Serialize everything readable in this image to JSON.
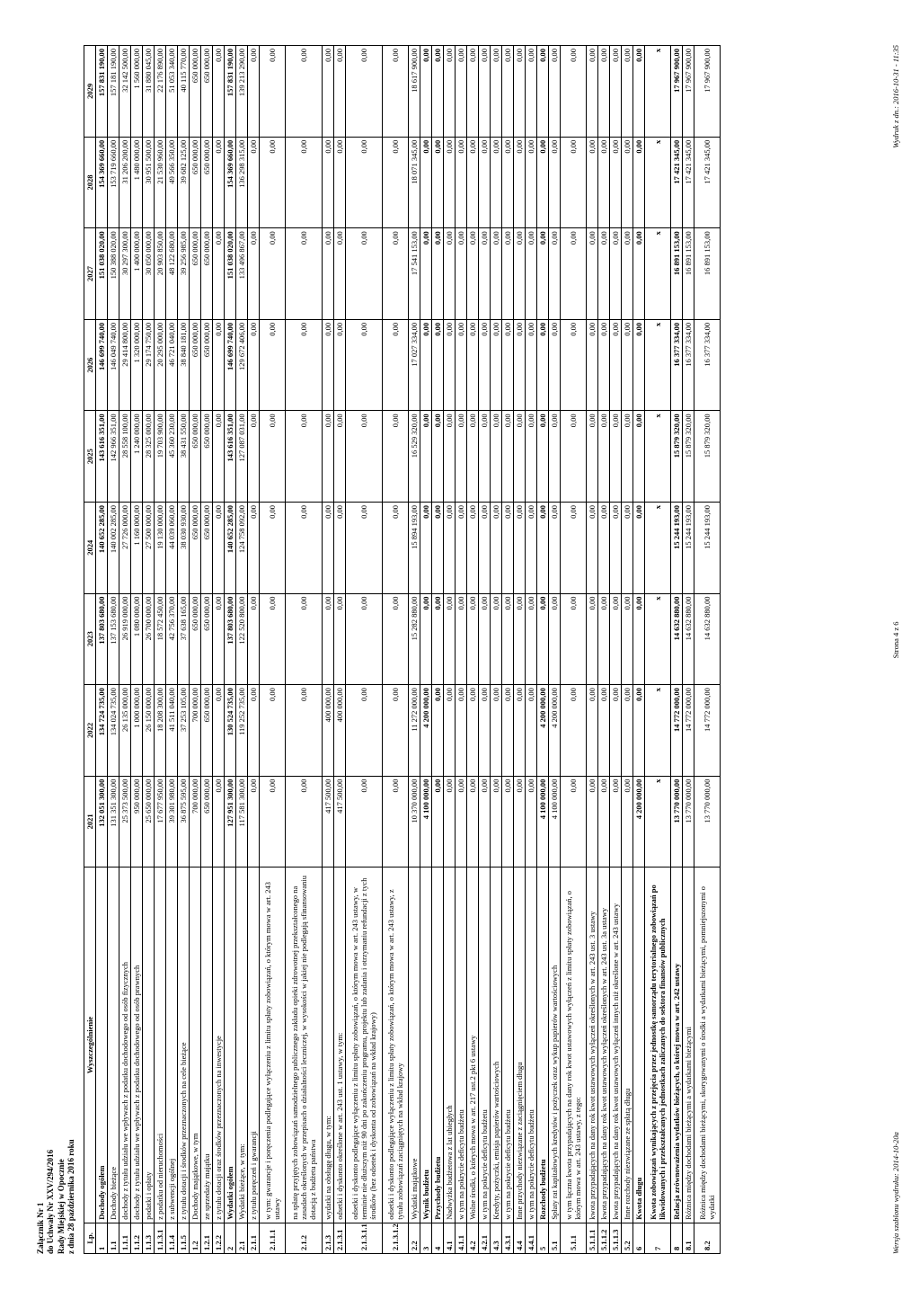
{
  "header": {
    "l1": "Załącznik Nr 1",
    "l2": "do Uchwały Nr XXV/294/2016",
    "l3": "Rady Miejskiej w Opocznie",
    "l4": "z dnia 28 października 2016 roku"
  },
  "columns": [
    "Lp.",
    "Wyszczególnienie",
    "2021",
    "2022",
    "2023",
    "2024",
    "2025",
    "2026",
    "2027",
    "2028",
    "2029"
  ],
  "rows": [
    {
      "lp": "1",
      "desc": "Dochody ogółem",
      "v": [
        "132 051 300,00",
        "134 724 735,00",
        "137 803 680,00",
        "140 652 285,00",
        "143 616 351,00",
        "146 699 740,00",
        "151 038 020,00",
        "154 369 660,00",
        "157 831 190,00"
      ],
      "bold": true
    },
    {
      "lp": "1.1",
      "desc": "Dochody bieżące",
      "v": [
        "131 351 300,00",
        "134 024 735,00",
        "137 153 680,00",
        "140 002 285,00",
        "142 966 351,00",
        "146 049 740,00",
        "150 388 020,00",
        "153 719 660,00",
        "157 181 190,00"
      ]
    },
    {
      "lp": "1.1.1",
      "desc": "dochody z tytułu udziału we wpływach z podatku dochodowego od osób fizycznych",
      "v": [
        "25 373 500,00",
        "26 135 000,00",
        "26 919 000,00",
        "27 726 000,00",
        "28 558 100,00",
        "29 414 800,00",
        "30 297 300,00",
        "31 206 200,00",
        "32 142 500,00"
      ]
    },
    {
      "lp": "1.1.2",
      "desc": "dochody z tytułu udziału we wpływach z podatku dochodowego od osób prawnych",
      "v": [
        "950 000,00",
        "1 000 000,00",
        "1 080 000,00",
        "1 160 000,00",
        "1 240 000,00",
        "1 320 000,00",
        "1 400 000,00",
        "1 480 000,00",
        "1 560 000,00"
      ]
    },
    {
      "lp": "1.1.3",
      "desc": "podatki i opłaty",
      "v": [
        "25 650 000,00",
        "26 150 000,00",
        "26 700 000,00",
        "27 500 000,00",
        "28 325 000,00",
        "29 174 750,00",
        "30 050 000,00",
        "30 951 500,00",
        "31 880 045,00"
      ]
    },
    {
      "lp": "1.1.3.1",
      "desc": "z podatku od nieruchomości",
      "v": [
        "17 677 950,00",
        "18 208 300,00",
        "18 572 450,00",
        "19 130 000,00",
        "19 703 900,00",
        "20 295 000,00",
        "20 903 850,00",
        "21 530 960,00",
        "22 176 890,00"
      ]
    },
    {
      "lp": "1.1.4",
      "desc": "z subwencji ogólnej",
      "v": [
        "39 301 980,00",
        "41 511 040,00",
        "42 756 370,00",
        "44 039 060,00",
        "45 360 230,00",
        "46 721 040,00",
        "48 122 680,00",
        "49 566 350,00",
        "51 053 340,00"
      ]
    },
    {
      "lp": "1.1.5",
      "desc": "z tytułu dotacji i środków przeznaczonych na cele bieżące",
      "v": [
        "36 875 595,00",
        "37 253 105,00",
        "37 638 165,00",
        "38 030 930,00",
        "38 431 550,00",
        "38 840 181,00",
        "39 256 985,00",
        "39 682 125,00",
        "40 115 770,00"
      ]
    },
    {
      "lp": "1.2",
      "desc": "Dochody majątkowe, w tym",
      "v": [
        "700 000,00",
        "700 000,00",
        "650 000,00",
        "650 000,00",
        "650 000,00",
        "650 000,00",
        "650 000,00",
        "650 000,00",
        "650 000,00"
      ]
    },
    {
      "lp": "1.2.1",
      "desc": "ze sprzedaży majątku",
      "v": [
        "650 000,00",
        "650 000,00",
        "650 000,00",
        "650 000,00",
        "650 000,00",
        "650 000,00",
        "650 000,00",
        "650 000,00",
        "650 000,00"
      ]
    },
    {
      "lp": "1.2.2",
      "desc": "z tytułu dotacji oraz środków przeznaczonych na inwestycje",
      "v": [
        "0,00",
        "0,00",
        "0,00",
        "0,00",
        "0,00",
        "0,00",
        "0,00",
        "0,00",
        "0,00"
      ]
    },
    {
      "lp": "2",
      "desc": "Wydatki ogółem",
      "v": [
        "127 951 300,00",
        "130 524 735,00",
        "137 803 680,00",
        "140 652 285,00",
        "143 616 351,00",
        "146 699 740,00",
        "151 038 020,00",
        "154 369 660,00",
        "157 831 190,00"
      ],
      "bold": true
    },
    {
      "lp": "2.1",
      "desc": "Wydatki bieżące, w tym:",
      "v": [
        "117 581 300,00",
        "119 252 735,00",
        "122 520 800,00",
        "124 758 092,00",
        "127 087 031,00",
        "129 672 406,00",
        "133 496 867,00",
        "136 298 315,00",
        "139 213 290,00"
      ]
    },
    {
      "lp": "2.1.1",
      "desc": "z tytułu poręczeń i gwarancji",
      "v": [
        "0,00",
        "0,00",
        "0,00",
        "0,00",
        "0,00",
        "0,00",
        "0,00",
        "0,00",
        "0,00"
      ]
    },
    {
      "lp": "2.1.1.1",
      "desc": "w tym: gwarancje i poręczenia podlegające wyłączeniu z limitu spłaty zobowiązań, o którym mowa w art. 243 ustawy",
      "v": [
        "0,00",
        "0,00",
        "0,00",
        "0,00",
        "0,00",
        "0,00",
        "0,00",
        "0,00",
        "0,00"
      ],
      "cls": "med"
    },
    {
      "lp": "2.1.2",
      "desc": "na spłatę przyjętych zobowiązań samodzielnego publicznego zakładu opieki zdrowotnej przekształconego na zasadach określonych w przepisach  o działalności leczniczej, w wysokości w jakiej nie podlegają sfinansowaniu dotacją z budżetu państwa",
      "v": [
        "0,00",
        "0,00",
        "0,00",
        "0,00",
        "0,00",
        "0,00",
        "0,00",
        "0,00",
        "0,00"
      ],
      "cls": "tall"
    },
    {
      "lp": "2.1.3",
      "desc": "wydatki na obsługę długu, w tym:",
      "v": [
        "417 500,00",
        "400 000,00",
        "0,00",
        "0,00",
        "0,00",
        "0,00",
        "0,00",
        "0,00",
        "0,00"
      ]
    },
    {
      "lp": "2.1.3.1",
      "desc": "odsetki i dyskonto określone w art. 243 ust. 1 ustawy, w tym:",
      "v": [
        "417 500,00",
        "400 000,00",
        "0,00",
        "0,00",
        "0,00",
        "0,00",
        "0,00",
        "0,00",
        "0,00"
      ]
    },
    {
      "lp": "2.1.3.1.1",
      "desc": "odsetki i dyskonto podlegające wyłączeniu z limitu spłaty zobowiązań, o którym mowa w art. 243 ustawy, w terminie nie dłuższym niż 90 dni po zakończeniu programu, projektu lub zadania i otrzymaniu refundacji z tych środków (bez odsetek i dyskonta od zobowiązań na wkład krajowy)",
      "v": [
        "0,00",
        "0,00",
        "0,00",
        "0,00",
        "0,00",
        "0,00",
        "0,00",
        "0,00",
        "0,00"
      ],
      "cls": "tall"
    },
    {
      "lp": "2.1.3.1.2",
      "desc": "odsetki i dyskonto podlegające wyłączeniu z limitu spłaty zobowiązań, o którym mowa w art. 243 ustawy, z tytułu zobowiązań  zaciągniętych na wkład krajowy",
      "v": [
        "0,00",
        "0,00",
        "0,00",
        "0,00",
        "0,00",
        "0,00",
        "0,00",
        "0,00",
        "0,00"
      ],
      "cls": "med"
    },
    {
      "lp": "2.2",
      "desc": "Wydatki majątkowe",
      "v": [
        "10 370 000,00",
        "11 272 000,00",
        "15 282 880,00",
        "15 894 193,00",
        "16 529 320,00",
        "17 027 334,00",
        "17 541 153,00",
        "18 071 345,00",
        "18 617 900,00"
      ]
    },
    {
      "lp": "3",
      "desc": "Wynik budżetu",
      "v": [
        "4 100 000,00",
        "4 200 000,00",
        "0,00",
        "0,00",
        "0,00",
        "0,00",
        "0,00",
        "0,00",
        "0,00"
      ],
      "bold": true
    },
    {
      "lp": "4",
      "desc": "Przychody budżetu",
      "v": [
        "0,00",
        "0,00",
        "0,00",
        "0,00",
        "0,00",
        "0,00",
        "0,00",
        "0,00",
        "0,00"
      ],
      "bold": true
    },
    {
      "lp": "4.1",
      "desc": "Nadwyżka budżetowa z lat ubiegłych",
      "v": [
        "0,00",
        "0,00",
        "0,00",
        "0,00",
        "0,00",
        "0,00",
        "0,00",
        "0,00",
        "0,00"
      ]
    },
    {
      "lp": "4.1.1",
      "desc": "w tym na pokrycie deficytu budżetu",
      "v": [
        "0,00",
        "0,00",
        "0,00",
        "0,00",
        "0,00",
        "0,00",
        "0,00",
        "0,00",
        "0,00"
      ]
    },
    {
      "lp": "4.2",
      "desc": "Wolne środki, o których mowa w art. 217 ust.2 pkt 6 ustawy",
      "v": [
        "0,00",
        "0,00",
        "0,00",
        "0,00",
        "0,00",
        "0,00",
        "0,00",
        "0,00",
        "0,00"
      ]
    },
    {
      "lp": "4.2.1",
      "desc": "w tym na pokrycie deficytu budżetu",
      "v": [
        "0,00",
        "0,00",
        "0,00",
        "0,00",
        "0,00",
        "0,00",
        "0,00",
        "0,00",
        "0,00"
      ]
    },
    {
      "lp": "4.3",
      "desc": "Kredyty, pożyczki, emisja papierów wartościowych",
      "v": [
        "0,00",
        "0,00",
        "0,00",
        "0,00",
        "0,00",
        "0,00",
        "0,00",
        "0,00",
        "0,00"
      ]
    },
    {
      "lp": "4.3.1",
      "desc": "w tym na pokrycie deficytu budżetu",
      "v": [
        "0,00",
        "0,00",
        "0,00",
        "0,00",
        "0,00",
        "0,00",
        "0,00",
        "0,00",
        "0,00"
      ]
    },
    {
      "lp": "4.4",
      "desc": "Inne przychody niezwiązane z zaciągnięciem długu",
      "v": [
        "0,00",
        "0,00",
        "0,00",
        "0,00",
        "0,00",
        "0,00",
        "0,00",
        "0,00",
        "0,00"
      ]
    },
    {
      "lp": "4.4.1",
      "desc": "w tym na pokrycie deficytu budżetu",
      "v": [
        "0,00",
        "0,00",
        "0,00",
        "0,00",
        "0,00",
        "0,00",
        "0,00",
        "0,00",
        "0,00"
      ]
    },
    {
      "lp": "5",
      "desc": "Rozchody budżetu",
      "v": [
        "4 100 000,00",
        "4 200 000,00",
        "0,00",
        "0,00",
        "0,00",
        "0,00",
        "0,00",
        "0,00",
        "0,00"
      ],
      "bold": true
    },
    {
      "lp": "5.1",
      "desc": "Spłaty rat kapitałowych kredytów i pożyczek oraz wykup papierów wartościowych",
      "v": [
        "4 100 000,00",
        "4 200 000,00",
        "0,00",
        "0,00",
        "0,00",
        "0,00",
        "0,00",
        "0,00",
        "0,00"
      ]
    },
    {
      "lp": "5.1.1",
      "desc": "w tym łączna kwota przypadających na dany rok kwot ustawowych wyłączeń z limitu spłaty zobowiązań, o którym mowa w art. 243 ustawy, z tego:",
      "v": [
        "0,00",
        "0,00",
        "0,00",
        "0,00",
        "0,00",
        "0,00",
        "0,00",
        "0,00",
        "0,00"
      ],
      "cls": "med"
    },
    {
      "lp": "5.1.1.1",
      "desc": "kwota przypadających na dany rok kwot ustawowych wyłączeń określonych w art. 243 ust. 3 ustawy",
      "v": [
        "0,00",
        "0,00",
        "0,00",
        "0,00",
        "0,00",
        "0,00",
        "0,00",
        "0,00",
        "0,00"
      ]
    },
    {
      "lp": "5.1.1.2",
      "desc": "kwota przypadających na dany rok kwot ustawowych wyłączeń określonych w art. 243 ust. 3a ustawy",
      "v": [
        "0,00",
        "0,00",
        "0,00",
        "0,00",
        "0,00",
        "0,00",
        "0,00",
        "0,00",
        "0,00"
      ]
    },
    {
      "lp": "5.1.1.3",
      "desc": "kwota przypadających na dany rok kwot ustawowych wyłączeń innych niż określone w art. 243 ustawy",
      "v": [
        "0,00",
        "0,00",
        "0,00",
        "0,00",
        "0,00",
        "0,00",
        "0,00",
        "0,00",
        "0,00"
      ]
    },
    {
      "lp": "5.2",
      "desc": "Inne rozchody niezwiązane ze spłatą długu",
      "v": [
        "0,00",
        "0,00",
        "0,00",
        "0,00",
        "0,00",
        "0,00",
        "0,00",
        "0,00",
        "0,00"
      ]
    },
    {
      "lp": "6",
      "desc": "Kwota długu",
      "v": [
        "4 200 000,00",
        "0,00",
        "0,00",
        "0,00",
        "0,00",
        "0,00",
        "0,00",
        "0,00",
        "0,00"
      ],
      "bold": true
    },
    {
      "lp": "7",
      "desc": "Kwota zobowiązań wynikających z przejęcia przez jednostkę samorządu terytorialnego zobowiązań po likwidowanych i przekształcanych jednostkach zaliczanych do sektora finansów publicznych",
      "v": [
        "x",
        "x",
        "x",
        "x",
        "x",
        "x",
        "x",
        "x",
        "x"
      ],
      "bold": true,
      "x": true,
      "cls": "med"
    },
    {
      "lp": "8",
      "desc": "Relacja zrównoważenia wydatków bieżących, o której mowa w art. 242 ustawy",
      "v": [
        "13 770 000,00",
        "14 772 000,00",
        "14 632 880,00",
        "15 244 193,00",
        "15 879 320,00",
        "16 377 334,00",
        "16 891 153,00",
        "17 421 345,00",
        "17 967 900,00"
      ],
      "bold": true
    },
    {
      "lp": "8.1",
      "desc": "Różnica między dochodami bieżącymi a  wydatkami bieżącymi",
      "v": [
        "13 770 000,00",
        "14 772 000,00",
        "14 632 880,00",
        "15 244 193,00",
        "15 879 320,00",
        "16 377 334,00",
        "16 891 153,00",
        "17 421 345,00",
        "17 967 900,00"
      ]
    },
    {
      "lp": "8.2",
      "desc": "Różnica między dochodami bieżącymi, skorygowanymi o środki a wydatkami bieżącymi, pomniejszonymi o wydatki",
      "v": [
        "13 770 000,00",
        "14 772 000,00",
        "14 632 880,00",
        "15 244 193,00",
        "15 879 320,00",
        "16 377 334,00",
        "16 891 153,00",
        "17 421 345,00",
        "17 967 900,00"
      ],
      "cls": "med"
    }
  ],
  "footer": {
    "left": "Wersja szablonu wydruku: 2014-10-20a",
    "center": "Strona 4 z 6",
    "right": "Wydruk z dn.: 2016-10-31 - 11:35"
  }
}
